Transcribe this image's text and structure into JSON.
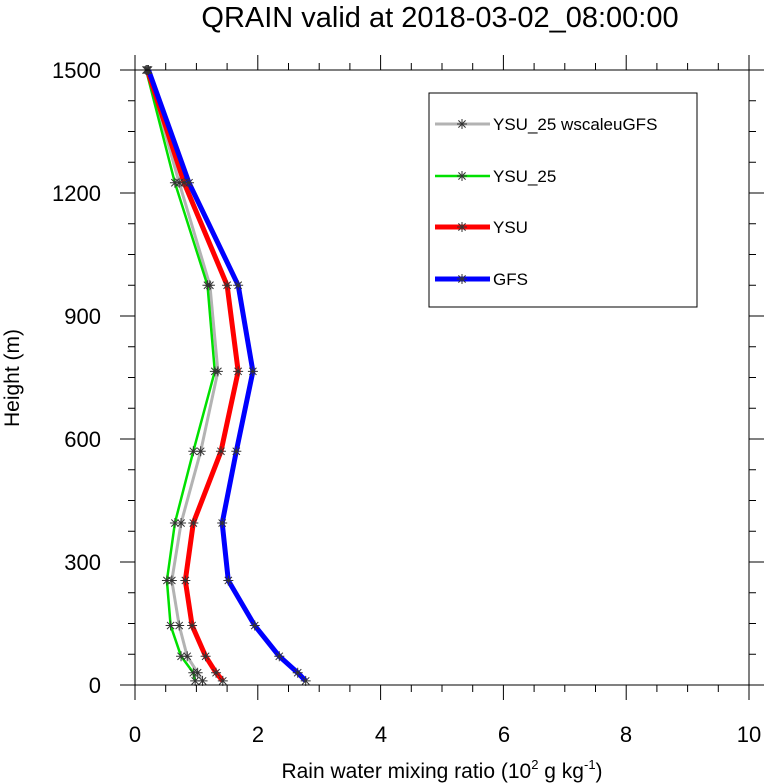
{
  "chart_data": {
    "type": "line",
    "title": "QRAIN valid at 2018-03-02_08:00:00",
    "xlabel": {
      "main": "Rain water mixing ratio (10",
      "sup1": "2",
      "mid": " g kg",
      "sup2": "-1",
      "end": ")"
    },
    "ylabel": "Height (m)",
    "xlim": [
      0,
      10
    ],
    "ylim": [
      0,
      1500
    ],
    "xticks": [
      "0",
      "2",
      "4",
      "6",
      "8",
      "10"
    ],
    "yticks": [
      "0",
      "300",
      "600",
      "900",
      "1200",
      "1500"
    ],
    "legend_position": "top-right",
    "y": [
      10,
      30,
      70,
      145,
      255,
      395,
      570,
      765,
      975,
      1225,
      1500
    ],
    "series": [
      {
        "name": "YSU_25 wscaleuGFS",
        "color": "#b3b3b3",
        "x": [
          1.1,
          1.02,
          0.85,
          0.72,
          0.6,
          0.75,
          1.07,
          1.35,
          1.22,
          0.72,
          0.2
        ]
      },
      {
        "name": "YSU_25",
        "color": "#00e000",
        "x": [
          0.98,
          0.95,
          0.75,
          0.58,
          0.52,
          0.65,
          0.95,
          1.3,
          1.18,
          0.65,
          0.18
        ]
      },
      {
        "name": "YSU",
        "color": "#ff0000",
        "x": [
          1.43,
          1.32,
          1.15,
          0.93,
          0.82,
          0.95,
          1.4,
          1.68,
          1.5,
          0.8,
          0.2
        ]
      },
      {
        "name": "GFS",
        "color": "#0000ff",
        "x": [
          2.78,
          2.65,
          2.35,
          1.95,
          1.52,
          1.42,
          1.65,
          1.92,
          1.68,
          0.88,
          0.22
        ]
      }
    ]
  }
}
